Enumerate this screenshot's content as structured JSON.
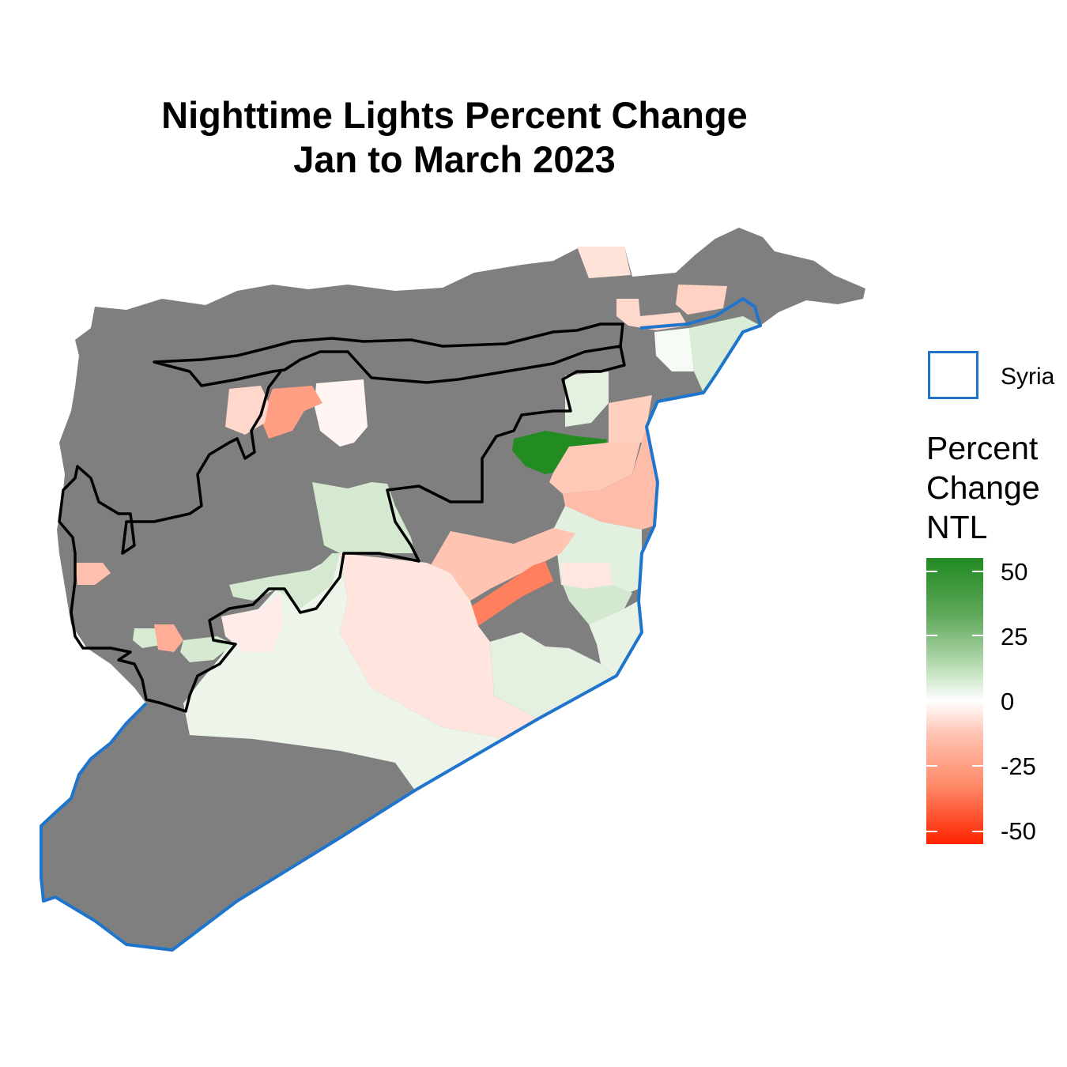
{
  "title": {
    "line1": "Nighttime Lights Percent Change",
    "line2": "Jan to March 2023"
  },
  "legend": {
    "boundary_label": "Syria",
    "boundary_color": "#1f74cc",
    "scale_title": "Percent\nChange\nNTL",
    "ticks": [
      "50",
      "25",
      "0",
      "-25",
      "-50"
    ],
    "scale_colors": {
      "high": "#228b22",
      "mid": "#ffffff",
      "low": "#ff2200",
      "no_data": "#7f7f7f"
    }
  }
}
